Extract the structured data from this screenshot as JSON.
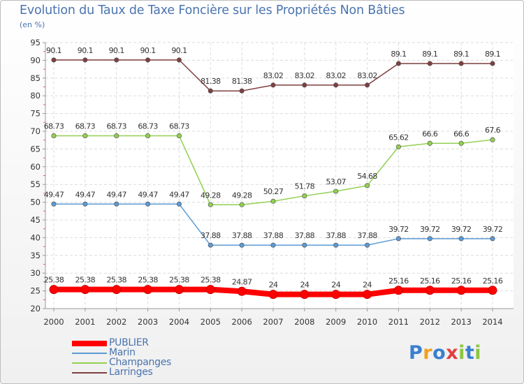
{
  "chart_data": {
    "type": "line",
    "title": "Evolution du Taux de Taxe Foncière sur les Propriétés Non Bâties",
    "ylabel": "(en %)",
    "xlabel": "",
    "x": [
      "2000",
      "2001",
      "2002",
      "2003",
      "2004",
      "2005",
      "2006",
      "2007",
      "2008",
      "2009",
      "2010",
      "2011",
      "2012",
      "2013",
      "2014"
    ],
    "ylim": [
      20,
      95
    ],
    "yticks": [
      20,
      25,
      30,
      35,
      40,
      45,
      50,
      55,
      60,
      65,
      70,
      75,
      80,
      85,
      90,
      95
    ],
    "series": [
      {
        "name": "PUBLIER",
        "color": "#ff0000",
        "values": [
          25.38,
          25.38,
          25.38,
          25.38,
          25.38,
          25.38,
          24.87,
          24,
          24,
          24,
          24,
          25.16,
          25.16,
          25.16,
          25.16
        ],
        "labels": [
          "25.38",
          "25.38",
          "25.38",
          "25.38",
          "25.38",
          "25.38",
          "24.87",
          "24",
          "24",
          "24",
          "24",
          "25.16",
          "25.16",
          "25.16",
          "25.16"
        ]
      },
      {
        "name": "Marin",
        "color": "#5b9bd5",
        "values": [
          49.47,
          49.47,
          49.47,
          49.47,
          49.47,
          37.88,
          37.88,
          37.88,
          37.88,
          37.88,
          37.88,
          39.72,
          39.72,
          39.72,
          39.72
        ],
        "labels": [
          "49.47",
          "49.47",
          "49.47",
          "49.47",
          "49.47",
          "37.88",
          "37.88",
          "37.88",
          "37.88",
          "37.88",
          "37.88",
          "39.72",
          "39.72",
          "39.72",
          "39.72"
        ]
      },
      {
        "name": "Champanges",
        "color": "#92d050",
        "values": [
          68.73,
          68.73,
          68.73,
          68.73,
          68.73,
          49.28,
          49.28,
          50.27,
          51.78,
          53.07,
          54.68,
          65.62,
          66.6,
          66.6,
          67.6
        ],
        "labels": [
          "68.73",
          "68.73",
          "68.73",
          "68.73",
          "68.73",
          "49.28",
          "49.28",
          "50.27",
          "51.78",
          "53.07",
          "54.68",
          "65.62",
          "66.6",
          "66.6",
          "67.6"
        ]
      },
      {
        "name": "Larringes",
        "color": "#7f3f3f",
        "values": [
          90.1,
          90.1,
          90.1,
          90.1,
          90.1,
          81.38,
          81.38,
          83.02,
          83.02,
          83.02,
          83.02,
          89.1,
          89.1,
          89.1,
          89.1
        ],
        "labels": [
          "90.1",
          "90.1",
          "90.1",
          "90.1",
          "90.1",
          "81.38",
          "81.38",
          "83.02",
          "83.02",
          "83.02",
          "83.02",
          "89.1",
          "89.1",
          "89.1",
          "89.1"
        ]
      }
    ]
  },
  "logo": {
    "text": "Proxiti"
  }
}
